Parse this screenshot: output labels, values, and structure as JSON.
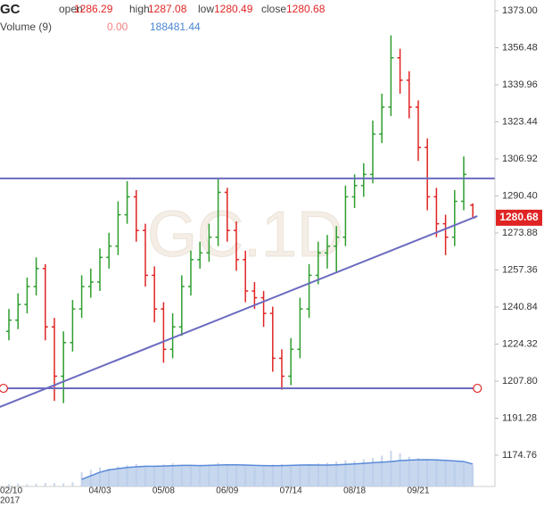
{
  "chart_data": {
    "type": "ohlc",
    "symbol": "GC",
    "watermark": "GC.1D",
    "header_labels": [
      "open",
      "high",
      "low",
      "close"
    ],
    "volume_label": "Volume (9)",
    "volume_current_label": "0.00",
    "year_label": "2017",
    "up_color": "#2e9e2e",
    "down_color": "#e02424",
    "line_color": "#6b6bc0",
    "volume_color": "#b9cdea",
    "volume_line_color": "#5a8ad8",
    "categories": [
      "02/10",
      null,
      null,
      null,
      null,
      null,
      null,
      null,
      null,
      null,
      "04/03",
      null,
      null,
      null,
      null,
      null,
      null,
      "05/08",
      null,
      null,
      null,
      null,
      null,
      null,
      "06/09",
      null,
      null,
      null,
      null,
      null,
      null,
      "07/14",
      null,
      null,
      null,
      null,
      null,
      null,
      "08/18",
      null,
      null,
      null,
      null,
      null,
      null,
      "09/21",
      null,
      null,
      null,
      null,
      null,
      null
    ],
    "open": [
      1230,
      1235,
      1242,
      1250,
      1258,
      1232,
      1210,
      1225,
      1240,
      1250,
      1252,
      1263,
      1268,
      1282,
      1290,
      1275,
      1255,
      1240,
      1222,
      1232,
      1250,
      1262,
      1265,
      1272,
      1292,
      1275,
      1262,
      1248,
      1245,
      1238,
      1218,
      1210,
      1222,
      1240,
      1255,
      1265,
      1268,
      1272,
      1290,
      1295,
      1300,
      1318,
      1330,
      1352,
      1342,
      1330,
      1312,
      1290,
      1278,
      1272,
      1288,
      1286.29
    ],
    "high": [
      1240,
      1247,
      1254,
      1263,
      1260,
      1236,
      1230,
      1244,
      1255,
      1258,
      1267,
      1274,
      1288,
      1297,
      1293,
      1278,
      1259,
      1243,
      1238,
      1255,
      1266,
      1270,
      1278,
      1298,
      1294,
      1279,
      1266,
      1252,
      1248,
      1241,
      1222,
      1227,
      1245,
      1260,
      1270,
      1273,
      1277,
      1295,
      1300,
      1305,
      1324,
      1336,
      1362,
      1356,
      1346,
      1333,
      1316,
      1294,
      1282,
      1293,
      1308,
      1287.08
    ],
    "low": [
      1226,
      1231,
      1238,
      1246,
      1226,
      1199,
      1198,
      1221,
      1236,
      1245,
      1248,
      1258,
      1264,
      1278,
      1270,
      1250,
      1234,
      1216,
      1218,
      1228,
      1246,
      1258,
      1261,
      1268,
      1270,
      1257,
      1243,
      1240,
      1232,
      1212,
      1204,
      1206,
      1218,
      1236,
      1251,
      1258,
      1256,
      1268,
      1285,
      1290,
      1296,
      1314,
      1326,
      1336,
      1325,
      1306,
      1284,
      1272,
      1264,
      1268,
      1284,
      1280.49
    ],
    "close": [
      1235,
      1242,
      1250,
      1258,
      1232,
      1210,
      1225,
      1240,
      1250,
      1252,
      1263,
      1268,
      1282,
      1290,
      1275,
      1255,
      1240,
      1222,
      1232,
      1250,
      1262,
      1265,
      1272,
      1292,
      1275,
      1262,
      1248,
      1245,
      1238,
      1218,
      1210,
      1222,
      1240,
      1255,
      1265,
      1268,
      1272,
      1290,
      1295,
      1300,
      1318,
      1330,
      1352,
      1342,
      1330,
      1312,
      1290,
      1278,
      1272,
      1288,
      1300,
      1280.68
    ],
    "volume": [
      20000,
      25000,
      18000,
      22000,
      30000,
      28000,
      26000,
      35000,
      120000,
      140000,
      160000,
      150000,
      170000,
      180000,
      190000,
      175000,
      165000,
      185000,
      195000,
      180000,
      170000,
      175000,
      185000,
      200000,
      190000,
      180000,
      170000,
      160000,
      175000,
      185000,
      190000,
      180000,
      175000,
      185000,
      195000,
      200000,
      210000,
      220000,
      215000,
      230000,
      240000,
      260000,
      300000,
      280000,
      250000,
      240000,
      230000,
      220000,
      210000,
      200000,
      190000,
      175000
    ],
    "volume_ma": [
      null,
      null,
      null,
      null,
      null,
      null,
      null,
      null,
      60000,
      90000,
      120000,
      140000,
      150000,
      160000,
      165000,
      170000,
      170000,
      172000,
      175000,
      178000,
      178000,
      176000,
      178000,
      180000,
      182000,
      182000,
      180000,
      178000,
      176000,
      175000,
      176000,
      178000,
      180000,
      181000,
      180000,
      180000,
      182000,
      186000,
      190000,
      195000,
      200000,
      205000,
      210000,
      218000,
      222000,
      225000,
      226000,
      224000,
      220000,
      215000,
      210000,
      188481.44
    ],
    "volume_ylim": [
      0,
      1000000
    ],
    "trendlines": [
      {
        "x": [
          -1,
          53.4
        ],
        "y": [
          1298.2,
          1298.2
        ],
        "end_circles": false
      },
      {
        "x": [
          -1,
          51.5
        ],
        "y": [
          1196.3,
          1281.4
        ],
        "end_circles": false
      },
      {
        "x": [
          -0.6,
          51.5
        ],
        "y": [
          1204.6,
          1204.6
        ],
        "end_circles": true
      }
    ],
    "ylim": [
      1160.83,
      1377.78
    ],
    "yticks": [
      {
        "value": 1373,
        "label": "1373.00"
      },
      1356.48,
      1339.96,
      1323.44,
      1306.92,
      {
        "value": 1290.4,
        "label": "1290.40"
      },
      1273.88,
      1257.36,
      1240.84,
      1224.32,
      {
        "value": 1207.8,
        "label": "1207.80"
      },
      1191.28,
      1174.76
    ]
  }
}
